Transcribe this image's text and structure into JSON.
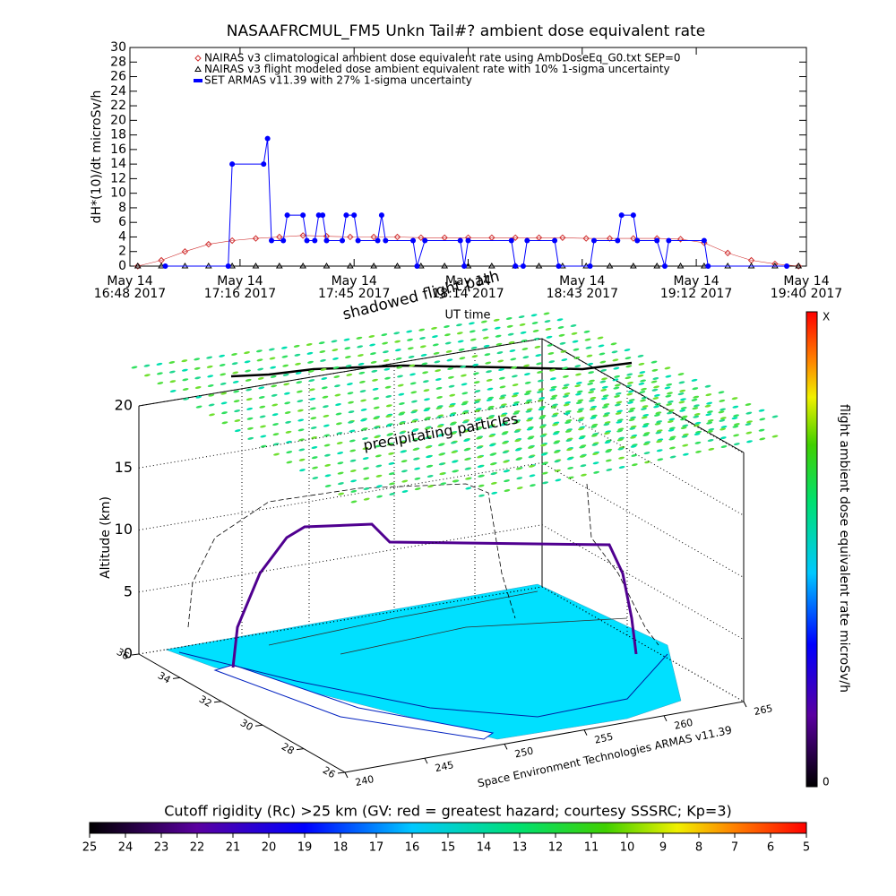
{
  "chart_data": [
    {
      "type": "line",
      "title": "NASAAFRCMUL_FM5 Unkn Tail#? ambient dose equivalent rate",
      "x_label": "UT time",
      "y_label": "dH*(10)/dt microSv/h",
      "xlim": [
        1008,
        1180
      ],
      "xticks": [
        {
          "value": 1008,
          "label": "May 14\n16:48 2017"
        },
        {
          "value": 1036,
          "label": "May 14\n17:16 2017"
        },
        {
          "value": 1065,
          "label": "May 14\n17:45 2017"
        },
        {
          "value": 1094,
          "label": "May 14\n18:14 2017"
        },
        {
          "value": 1123,
          "label": "May 14\n18:43 2017"
        },
        {
          "value": 1152,
          "label": "May 14\n19:12 2017"
        },
        {
          "value": 1180,
          "label": "May 14\n19:40 2017"
        }
      ],
      "ylim": [
        0,
        30
      ],
      "yticks": [
        0,
        2,
        4,
        6,
        8,
        10,
        12,
        14,
        16,
        18,
        20,
        22,
        24,
        26,
        28,
        30
      ],
      "series": [
        {
          "name": "NAIRAS v3 climatological ambient dose equivalent rate using AmbDoseEq_G0.txt SEP=0",
          "color": "#d03030",
          "marker": "diamond",
          "x": [
            1010,
            1016,
            1022,
            1028,
            1034,
            1040,
            1046,
            1052,
            1058,
            1064,
            1070,
            1076,
            1082,
            1088,
            1094,
            1100,
            1106,
            1112,
            1118,
            1124,
            1130,
            1136,
            1142,
            1148,
            1154,
            1160,
            1166,
            1172,
            1178
          ],
          "values": [
            0,
            0.8,
            2,
            3,
            3.5,
            3.8,
            4,
            4.2,
            4.1,
            4,
            4,
            4,
            3.9,
            3.9,
            3.9,
            3.9,
            3.9,
            3.9,
            3.9,
            3.8,
            3.8,
            3.8,
            3.8,
            3.7,
            3.2,
            1.8,
            0.8,
            0.3,
            0
          ]
        },
        {
          "name": "NAIRAS v3 flight modeled dose ambient equivalent rate with 10% 1-sigma uncertainty",
          "color": "#000000",
          "marker": "triangle",
          "x": [
            1010,
            1016,
            1022,
            1028,
            1034,
            1040,
            1046,
            1052,
            1058,
            1064,
            1070,
            1076,
            1082,
            1088,
            1094,
            1100,
            1106,
            1112,
            1118,
            1124,
            1130,
            1136,
            1142,
            1148,
            1154,
            1160,
            1166,
            1172,
            1178
          ],
          "values": [
            0,
            0,
            0,
            0,
            0,
            0,
            0,
            0,
            0,
            0,
            0,
            0,
            0,
            0,
            0,
            0,
            0,
            0,
            0,
            0,
            0,
            0,
            0,
            0,
            0,
            0,
            0,
            0,
            0
          ]
        },
        {
          "name": "SET ARMAS v11.39 with 27% 1-sigma uncertainty",
          "color": "#0000ff",
          "marker": "circle",
          "x": [
            1017,
            1033,
            1034,
            1042,
            1043,
            1044,
            1047,
            1048,
            1052,
            1053,
            1055,
            1056,
            1057,
            1058,
            1062,
            1063,
            1065,
            1066,
            1071,
            1072,
            1073,
            1080,
            1081,
            1083,
            1092,
            1093,
            1094,
            1105,
            1106,
            1108,
            1109,
            1116,
            1117,
            1125,
            1126,
            1132,
            1133,
            1136,
            1137,
            1142,
            1144,
            1145,
            1154,
            1155,
            1175
          ],
          "values": [
            0,
            0,
            14,
            14,
            17.5,
            3.5,
            3.5,
            7,
            7,
            3.5,
            3.5,
            7,
            7,
            3.5,
            3.5,
            7,
            7,
            3.5,
            3.5,
            7,
            3.5,
            3.5,
            0,
            3.5,
            3.5,
            0,
            3.5,
            3.5,
            0,
            0,
            3.5,
            3.5,
            0,
            0,
            3.5,
            3.5,
            7,
            7,
            3.5,
            3.5,
            0,
            3.5,
            3.5,
            0,
            0
          ]
        }
      ]
    },
    {
      "type": "surface3d",
      "z_label": "Altitude (km)",
      "zlim": [
        0,
        20
      ],
      "zticks": [
        0,
        5,
        10,
        15,
        20
      ],
      "ylim": [
        36,
        26
      ],
      "yticks": [
        36,
        34,
        32,
        30,
        28,
        26
      ],
      "xlim": [
        240,
        265
      ],
      "xticks": [
        240,
        245,
        250,
        255,
        260,
        265
      ],
      "annotations": [
        "precipitating particles",
        "shadowed flight path"
      ],
      "credit": "Space Environment Technologies ARMAS v11.39",
      "dose_colorbar": {
        "title": "flight ambient dose equivalent rate microSv/h",
        "max_label": "X",
        "min": 0
      },
      "rigidity_colorbar": {
        "title": "Cutoff rigidity (Rc) >25 km (GV: red = greatest hazard; courtesy SSSRC; Kp=3)",
        "clim": [
          25,
          5
        ],
        "ticks": [
          25,
          24,
          23,
          22,
          21,
          20,
          19,
          18,
          17,
          16,
          15,
          14,
          13,
          12,
          11,
          10,
          9,
          8,
          7,
          6,
          5
        ]
      }
    }
  ]
}
